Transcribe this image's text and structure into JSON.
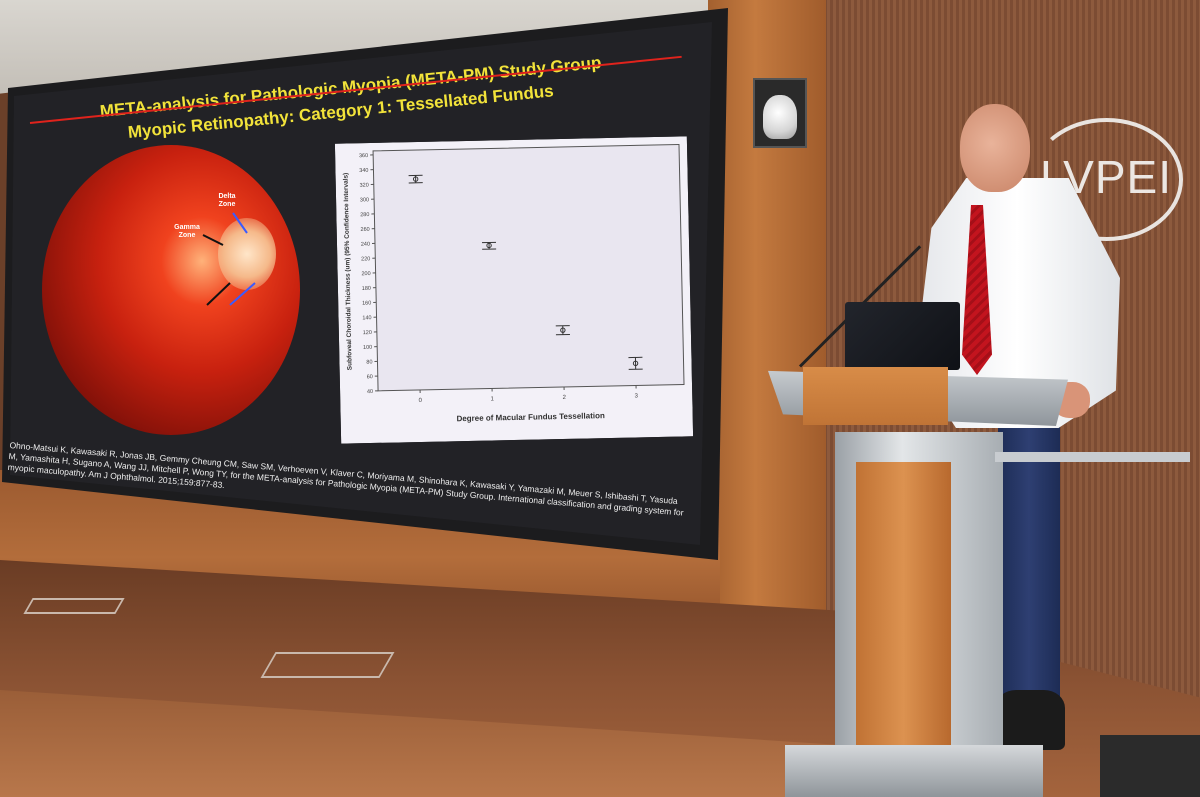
{
  "slide": {
    "title_line1": "META-analysis for Pathologic Myopia (META-PM) Study Group",
    "title_line2": "Myopic Retinopathy: Category 1: Tessellated Fundus",
    "fundus_labels": {
      "delta": "Delta Zone",
      "gamma": "Gamma Zone"
    },
    "citation": "Ohno-Matsui K, Kawasaki R, Jonas JB, Gemmy Cheung CM, Saw SM, Verhoeven V, Klaver C, Moriyama M, Shinohara K, Kawasaki Y, Yamazaki M, Meuer S, Ishibashi T, Yasuda M, Yamashita H, Sugano A, Wang JJ, Mitchell P, Wong TY, for the META-analysis for Pathologic Myopia (META-PM) Study Group. International classification and grading system for myopic maculopathy. Am J Ophthalmol. 2015;159:877-83."
  },
  "logo": {
    "text": "LVPEI"
  },
  "chart_data": {
    "type": "scatter",
    "title": "",
    "xlabel": "Degree of Macular Fundus Tessellation",
    "ylabel": "Subfoveal Choroidal Thickness (um) (95% Confidence Intervals)",
    "categories": [
      "0",
      "1",
      "2",
      "3"
    ],
    "values": [
      326,
      234,
      117,
      70
    ],
    "ci_low": [
      321,
      229,
      111,
      62
    ],
    "ci_high": [
      331,
      238,
      123,
      78
    ],
    "ylim": [
      40,
      360
    ],
    "yticks": [
      40,
      60,
      80,
      100,
      120,
      140,
      160,
      180,
      200,
      220,
      240,
      260,
      280,
      300,
      320,
      340,
      360
    ],
    "grid": false,
    "error_bars": true
  },
  "colors": {
    "title": "#f2e33a",
    "rule": "#e0231c",
    "tie": "#c3141e"
  }
}
